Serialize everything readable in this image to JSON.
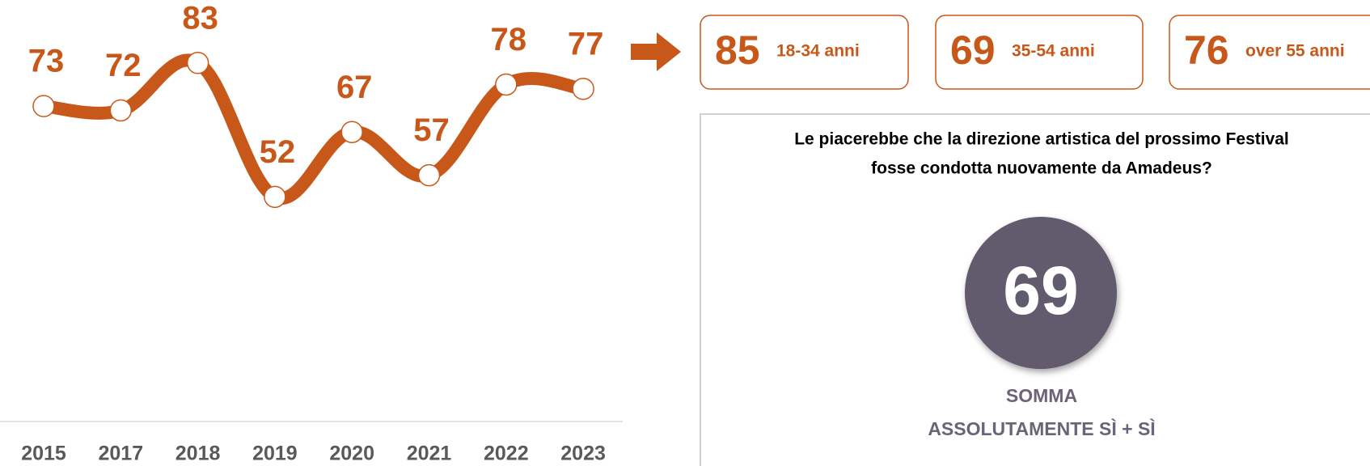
{
  "chart_data": {
    "type": "line",
    "categories": [
      "2015",
      "2017",
      "2018",
      "2019",
      "2020",
      "2021",
      "2022",
      "2023"
    ],
    "values": [
      73,
      72,
      83,
      52,
      67,
      57,
      78,
      77
    ],
    "color": "#c8581a"
  },
  "age_groups": [
    {
      "value": "85",
      "label": "18-34 anni"
    },
    {
      "value": "69",
      "label": "35-54 anni"
    },
    {
      "value": "76",
      "label": "over 55 anni"
    }
  ],
  "question": [
    "Le piacerebbe che la direzione artistica del prossimo Festival",
    "fosse condotta nuovamente da Amadeus?"
  ],
  "summary": {
    "value": "69",
    "label": [
      "SOMMA",
      "ASSOLUTAMENTE SÌ + SÌ"
    ]
  }
}
